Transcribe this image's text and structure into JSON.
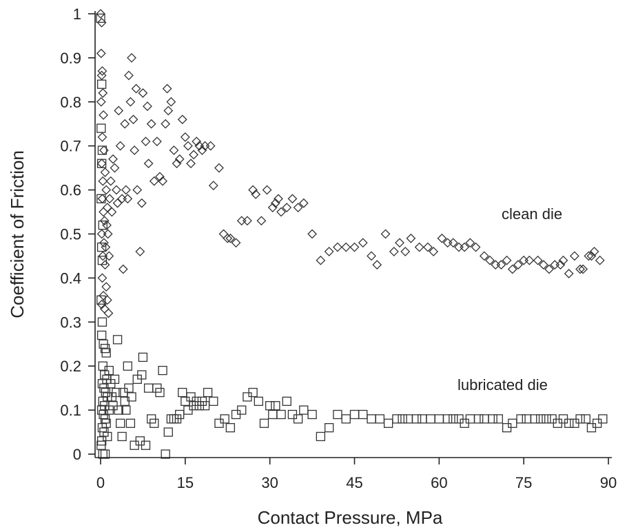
{
  "chart_data": {
    "type": "scatter",
    "xlabel": "Contact Pressure, MPa",
    "ylabel": "Coefficient of Friction",
    "xlim": [
      0,
      90
    ],
    "ylim": [
      0,
      1
    ],
    "xticks": [
      "0",
      "15",
      "30",
      "45",
      "60",
      "75",
      "90"
    ],
    "yticks": [
      "0",
      "0.1",
      "0.2",
      "0.3",
      "0.4",
      "0.5",
      "0.6",
      "0.7",
      "0.8",
      "0.9",
      "1"
    ],
    "grid": false,
    "legend": "none",
    "annotations": [
      "clean die",
      "lubricated die"
    ],
    "series": [
      {
        "marker": "diamond",
        "color": "#333333",
        "points": [
          [
            0,
            1.0
          ],
          [
            0.2,
            0.98
          ],
          [
            0.1,
            0.91
          ],
          [
            0.3,
            0.87
          ],
          [
            0.2,
            0.86
          ],
          [
            0.4,
            0.82
          ],
          [
            0.1,
            0.8
          ],
          [
            0.5,
            0.77
          ],
          [
            0.3,
            0.72
          ],
          [
            0.6,
            0.69
          ],
          [
            0.2,
            0.66
          ],
          [
            0.8,
            0.64
          ],
          [
            0.4,
            0.62
          ],
          [
            1.0,
            0.6
          ],
          [
            0.3,
            0.58
          ],
          [
            1.2,
            0.56
          ],
          [
            0.5,
            0.55
          ],
          [
            0.7,
            0.53
          ],
          [
            1.1,
            0.52
          ],
          [
            0.2,
            0.5
          ],
          [
            1.3,
            0.5
          ],
          [
            0.6,
            0.48
          ],
          [
            0.9,
            0.47
          ],
          [
            0.4,
            0.45
          ],
          [
            1.5,
            0.45
          ],
          [
            0.8,
            0.43
          ],
          [
            0.3,
            0.4
          ],
          [
            1.0,
            0.38
          ],
          [
            0.5,
            0.36
          ],
          [
            1.2,
            0.35
          ],
          [
            0.2,
            0.34
          ],
          [
            0.7,
            0.33
          ],
          [
            1.4,
            0.32
          ],
          [
            1.6,
            0.58
          ],
          [
            1.8,
            0.62
          ],
          [
            2.0,
            0.55
          ],
          [
            2.2,
            0.67
          ],
          [
            2.5,
            0.65
          ],
          [
            2.8,
            0.6
          ],
          [
            3.0,
            0.57
          ],
          [
            3.2,
            0.78
          ],
          [
            3.5,
            0.7
          ],
          [
            3.8,
            0.58
          ],
          [
            4.0,
            0.42
          ],
          [
            4.3,
            0.75
          ],
          [
            4.5,
            0.6
          ],
          [
            4.8,
            0.58
          ],
          [
            5.0,
            0.86
          ],
          [
            5.3,
            0.8
          ],
          [
            5.5,
            0.9
          ],
          [
            5.8,
            0.76
          ],
          [
            6.0,
            0.69
          ],
          [
            6.3,
            0.83
          ],
          [
            6.5,
            0.6
          ],
          [
            7.0,
            0.46
          ],
          [
            7.3,
            0.57
          ],
          [
            7.5,
            0.82
          ],
          [
            8.0,
            0.71
          ],
          [
            8.3,
            0.79
          ],
          [
            8.5,
            0.66
          ],
          [
            9.0,
            0.75
          ],
          [
            9.5,
            0.62
          ],
          [
            10.0,
            0.71
          ],
          [
            10.5,
            0.63
          ],
          [
            11.0,
            0.62
          ],
          [
            11.5,
            0.75
          ],
          [
            11.8,
            0.83
          ],
          [
            12.0,
            0.78
          ],
          [
            12.5,
            0.8
          ],
          [
            13.0,
            0.69
          ],
          [
            13.5,
            0.66
          ],
          [
            14.0,
            0.67
          ],
          [
            14.5,
            0.76
          ],
          [
            15.0,
            0.72
          ],
          [
            15.5,
            0.7
          ],
          [
            16.0,
            0.66
          ],
          [
            16.5,
            0.68
          ],
          [
            17.0,
            0.71
          ],
          [
            17.5,
            0.7
          ],
          [
            18.0,
            0.69
          ],
          [
            18.5,
            0.7
          ],
          [
            19.5,
            0.7
          ],
          [
            20.0,
            0.61
          ],
          [
            21.0,
            0.65
          ],
          [
            21.8,
            0.5
          ],
          [
            22.5,
            0.49
          ],
          [
            23.0,
            0.49
          ],
          [
            24.0,
            0.48
          ],
          [
            25.0,
            0.53
          ],
          [
            26.0,
            0.53
          ],
          [
            27.0,
            0.6
          ],
          [
            27.5,
            0.59
          ],
          [
            28.5,
            0.53
          ],
          [
            29.5,
            0.6
          ],
          [
            30.5,
            0.56
          ],
          [
            31.0,
            0.57
          ],
          [
            31.5,
            0.58
          ],
          [
            32.0,
            0.55
          ],
          [
            33.0,
            0.56
          ],
          [
            34.0,
            0.58
          ],
          [
            35.0,
            0.56
          ],
          [
            36.0,
            0.57
          ],
          [
            37.5,
            0.5
          ],
          [
            39.0,
            0.44
          ],
          [
            40.5,
            0.46
          ],
          [
            42.0,
            0.47
          ],
          [
            43.5,
            0.47
          ],
          [
            45.0,
            0.47
          ],
          [
            46.5,
            0.48
          ],
          [
            48.0,
            0.45
          ],
          [
            49.0,
            0.43
          ],
          [
            50.5,
            0.5
          ],
          [
            52.0,
            0.46
          ],
          [
            53.0,
            0.48
          ],
          [
            54.0,
            0.46
          ],
          [
            55.0,
            0.49
          ],
          [
            56.5,
            0.47
          ],
          [
            58.0,
            0.47
          ],
          [
            59.0,
            0.46
          ],
          [
            60.5,
            0.49
          ],
          [
            61.5,
            0.48
          ],
          [
            62.5,
            0.48
          ],
          [
            63.5,
            0.47
          ],
          [
            64.5,
            0.47
          ],
          [
            65.5,
            0.48
          ],
          [
            66.5,
            0.47
          ],
          [
            68.0,
            0.45
          ],
          [
            69.0,
            0.44
          ],
          [
            70.0,
            0.43
          ],
          [
            71.0,
            0.43
          ],
          [
            72.0,
            0.44
          ],
          [
            73.0,
            0.42
          ],
          [
            74.0,
            0.43
          ],
          [
            75.0,
            0.44
          ],
          [
            76.0,
            0.44
          ],
          [
            77.5,
            0.44
          ],
          [
            78.5,
            0.43
          ],
          [
            79.5,
            0.42
          ],
          [
            80.5,
            0.43
          ],
          [
            81.5,
            0.43
          ],
          [
            82.0,
            0.44
          ],
          [
            83.0,
            0.41
          ],
          [
            84.0,
            0.45
          ],
          [
            85.0,
            0.42
          ],
          [
            85.5,
            0.42
          ],
          [
            86.5,
            0.45
          ],
          [
            87.0,
            0.45
          ],
          [
            87.5,
            0.46
          ],
          [
            88.5,
            0.44
          ]
        ]
      },
      {
        "marker": "square",
        "color": "#333333",
        "points": [
          [
            0,
            0.99
          ],
          [
            0.2,
            0.84
          ],
          [
            0.1,
            0.74
          ],
          [
            0.3,
            0.69
          ],
          [
            0.2,
            0.66
          ],
          [
            0.1,
            0.58
          ],
          [
            0.4,
            0.52
          ],
          [
            0.2,
            0.47
          ],
          [
            0.3,
            0.44
          ],
          [
            0.1,
            0.35
          ],
          [
            0.3,
            0.3
          ],
          [
            0.2,
            0.27
          ],
          [
            0.5,
            0.25
          ],
          [
            0.8,
            0.24
          ],
          [
            1.0,
            0.23
          ],
          [
            0.4,
            0.2
          ],
          [
            0.7,
            0.18
          ],
          [
            1.1,
            0.17
          ],
          [
            0.3,
            0.16
          ],
          [
            0.6,
            0.15
          ],
          [
            0.9,
            0.14
          ],
          [
            1.2,
            0.13
          ],
          [
            0.4,
            0.12
          ],
          [
            0.7,
            0.11
          ],
          [
            1.5,
            0.1
          ],
          [
            0.2,
            0.1
          ],
          [
            0.5,
            0.09
          ],
          [
            0.8,
            0.08
          ],
          [
            1.0,
            0.07
          ],
          [
            0.3,
            0.06
          ],
          [
            0.6,
            0.05
          ],
          [
            1.2,
            0.04
          ],
          [
            0.2,
            0.03
          ],
          [
            0.1,
            0.02
          ],
          [
            0.4,
            0.0
          ],
          [
            0.8,
            0.0
          ],
          [
            1.5,
            0.19
          ],
          [
            1.8,
            0.16
          ],
          [
            2.0,
            0.13
          ],
          [
            2.2,
            0.11
          ],
          [
            2.5,
            0.17
          ],
          [
            2.8,
            0.14
          ],
          [
            3.0,
            0.26
          ],
          [
            3.2,
            0.1
          ],
          [
            3.5,
            0.07
          ],
          [
            3.8,
            0.04
          ],
          [
            4.0,
            0.14
          ],
          [
            4.3,
            0.12
          ],
          [
            4.5,
            0.1
          ],
          [
            4.8,
            0.2
          ],
          [
            5.0,
            0.15
          ],
          [
            5.3,
            0.07
          ],
          [
            5.5,
            0.13
          ],
          [
            6.0,
            0.02
          ],
          [
            6.5,
            0.17
          ],
          [
            7.0,
            0.03
          ],
          [
            7.3,
            0.18
          ],
          [
            7.5,
            0.22
          ],
          [
            8.0,
            0.02
          ],
          [
            8.5,
            0.15
          ],
          [
            9.0,
            0.08
          ],
          [
            9.5,
            0.07
          ],
          [
            10.0,
            0.15
          ],
          [
            10.5,
            0.14
          ],
          [
            11.0,
            0.19
          ],
          [
            11.5,
            0.0
          ],
          [
            12.0,
            0.05
          ],
          [
            12.5,
            0.08
          ],
          [
            13.0,
            0.08
          ],
          [
            13.5,
            0.08
          ],
          [
            14.0,
            0.09
          ],
          [
            14.5,
            0.14
          ],
          [
            15.0,
            0.12
          ],
          [
            15.5,
            0.1
          ],
          [
            16.0,
            0.13
          ],
          [
            16.5,
            0.11
          ],
          [
            17.0,
            0.12
          ],
          [
            17.5,
            0.11
          ],
          [
            18.0,
            0.12
          ],
          [
            18.5,
            0.11
          ],
          [
            19.0,
            0.14
          ],
          [
            20.0,
            0.12
          ],
          [
            21.0,
            0.07
          ],
          [
            22.0,
            0.08
          ],
          [
            23.0,
            0.06
          ],
          [
            24.0,
            0.09
          ],
          [
            25.0,
            0.1
          ],
          [
            26.0,
            0.13
          ],
          [
            27.0,
            0.14
          ],
          [
            28.0,
            0.12
          ],
          [
            29.0,
            0.07
          ],
          [
            30.0,
            0.11
          ],
          [
            30.5,
            0.09
          ],
          [
            31.0,
            0.11
          ],
          [
            32.0,
            0.09
          ],
          [
            33.0,
            0.12
          ],
          [
            34.0,
            0.09
          ],
          [
            35.0,
            0.08
          ],
          [
            36.0,
            0.1
          ],
          [
            37.5,
            0.09
          ],
          [
            39.0,
            0.04
          ],
          [
            40.5,
            0.06
          ],
          [
            42.0,
            0.09
          ],
          [
            43.5,
            0.08
          ],
          [
            45.0,
            0.09
          ],
          [
            46.5,
            0.09
          ],
          [
            48.0,
            0.08
          ],
          [
            49.5,
            0.08
          ],
          [
            51.0,
            0.07
          ],
          [
            52.5,
            0.08
          ],
          [
            53.5,
            0.08
          ],
          [
            54.5,
            0.08
          ],
          [
            56.0,
            0.08
          ],
          [
            57.0,
            0.08
          ],
          [
            58.5,
            0.08
          ],
          [
            60.0,
            0.08
          ],
          [
            61.5,
            0.08
          ],
          [
            62.5,
            0.08
          ],
          [
            63.5,
            0.08
          ],
          [
            64.5,
            0.07
          ],
          [
            65.5,
            0.08
          ],
          [
            67.0,
            0.08
          ],
          [
            68.0,
            0.08
          ],
          [
            69.5,
            0.08
          ],
          [
            70.5,
            0.08
          ],
          [
            72.0,
            0.06
          ],
          [
            73.0,
            0.07
          ],
          [
            74.5,
            0.08
          ],
          [
            75.5,
            0.08
          ],
          [
            77.0,
            0.08
          ],
          [
            78.0,
            0.08
          ],
          [
            79.0,
            0.08
          ],
          [
            80.0,
            0.08
          ],
          [
            81.0,
            0.07
          ],
          [
            82.0,
            0.08
          ],
          [
            83.0,
            0.07
          ],
          [
            84.0,
            0.07
          ],
          [
            85.0,
            0.08
          ],
          [
            86.0,
            0.08
          ],
          [
            87.0,
            0.06
          ],
          [
            88.0,
            0.07
          ],
          [
            89.0,
            0.08
          ]
        ]
      }
    ]
  }
}
